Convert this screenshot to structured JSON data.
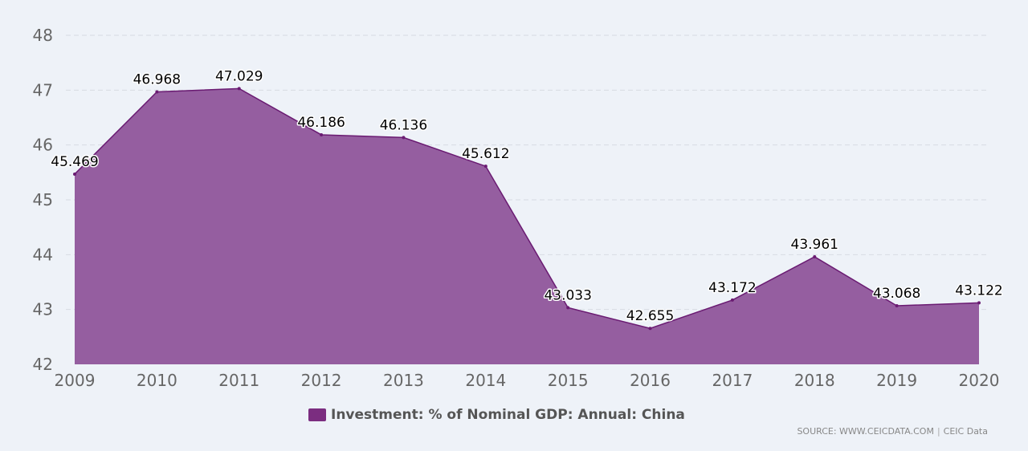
{
  "chart_data": {
    "type": "area",
    "title": "",
    "xlabel": "",
    "ylabel": "",
    "categories": [
      "2009",
      "2010",
      "2011",
      "2012",
      "2013",
      "2014",
      "2015",
      "2016",
      "2017",
      "2018",
      "2019",
      "2020"
    ],
    "series": [
      {
        "name": "Investment: % of Nominal GDP: Annual: China",
        "values": [
          45.469,
          46.968,
          47.029,
          46.186,
          46.136,
          45.612,
          43.033,
          42.655,
          43.172,
          43.961,
          43.068,
          43.122
        ],
        "labels": [
          "45.469",
          "46.968",
          "47.029",
          "46.186",
          "46.136",
          "45.612",
          "43.033",
          "42.655",
          "43.172",
          "43.961",
          "43.068",
          "43.122"
        ]
      }
    ],
    "ylim": [
      42,
      48
    ],
    "yticks": [
      42,
      43,
      44,
      45,
      46,
      47,
      48
    ],
    "ytick_labels": [
      "42",
      "43",
      "44",
      "45",
      "46",
      "47",
      "48"
    ],
    "grid": true,
    "legend_position": "bottom-center"
  },
  "colors": {
    "fill": "#955ea0",
    "line": "#6a1b72",
    "legend_swatch": "#7b2d80",
    "grid": "#d7dbe2"
  },
  "legend": {
    "label": "Investment: % of Nominal GDP: Annual: China"
  },
  "source": {
    "text": "SOURCE: WWW.CEICDATA.COM",
    "separator": "|",
    "brand": "CEIC Data"
  }
}
